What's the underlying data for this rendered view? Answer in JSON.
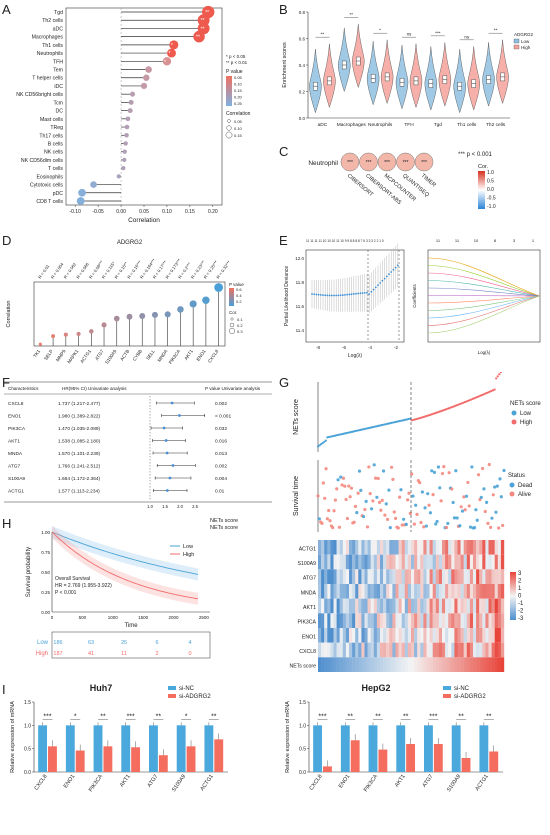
{
  "panels": {
    "A": "A",
    "B": "B",
    "C": "C",
    "D": "D",
    "E": "E",
    "F": "F",
    "G": "G",
    "H": "H",
    "I": "I"
  },
  "colors": {
    "low": "#4aa3d6",
    "high": "#f26b6b",
    "bar_nc": "#4aa8dc",
    "bar_si": "#f46d5e"
  },
  "panelA": {
    "xlabel": "Correlation",
    "xticks": [
      "-0.10",
      "-0.05",
      "0.00",
      "0.05",
      "0.10",
      "0.15",
      "0.20"
    ],
    "legend_sig": [
      "* p < 0.05",
      "** p < 0.01"
    ],
    "legend_pval_title": "P value",
    "legend_pval_ticks": [
      "0.05",
      "0.10",
      "0.15",
      "0.20",
      "0.25"
    ],
    "legend_corr_title": "Correlation",
    "legend_corr_ticks": [
      "0.05",
      "0.10",
      "0.15"
    ],
    "chart_data": {
      "type": "scatter",
      "categories": [
        "Tgd",
        "Th2 cells",
        "aDC",
        "Macrophages",
        "Th1 cells",
        "Neutrophils",
        "TFH",
        "Tem",
        "T helper cells",
        "iDC",
        "NK CD56bright cells",
        "Tcm",
        "DC",
        "Mast cells",
        "TReg",
        "Th17 cells",
        "B cells",
        "NK cells",
        "NK CD56dim cells",
        "T cells",
        "Eosinophils",
        "Cytotoxic cells",
        "pDC",
        "CD8 T cells"
      ],
      "values": [
        0.19,
        0.18,
        0.18,
        0.17,
        0.115,
        0.11,
        0.1,
        0.06,
        0.055,
        0.05,
        0.025,
        0.022,
        0.02,
        0.015,
        0.013,
        0.012,
        0.01,
        0.008,
        0.007,
        0.005,
        -0.005,
        -0.06,
        -0.085,
        -0.088
      ],
      "stars": [
        "**",
        "**",
        "**",
        "**",
        "*",
        "*",
        "*",
        "",
        "",
        "",
        "",
        "",
        "",
        "",
        "",
        "",
        "",
        "",
        "",
        "",
        "",
        "",
        "",
        ""
      ],
      "xlim": [
        -0.12,
        0.22
      ]
    }
  },
  "panelB": {
    "ylabel": "Enrichment scores",
    "legend_title": "ADGRG2",
    "legend": [
      "Low",
      "High"
    ],
    "yticks": [
      "0.0",
      "0.2",
      "0.4",
      "0.6",
      "0.8"
    ],
    "chart_data": {
      "type": "violin",
      "categories": [
        "aDC",
        "Macrophages",
        "Neutrophils",
        "TFH",
        "Tgd",
        "Th1 cells",
        "Th2 cells"
      ],
      "series": [
        {
          "name": "Low",
          "values": [
            0.24,
            0.4,
            0.3,
            0.27,
            0.26,
            0.24,
            0.29
          ]
        },
        {
          "name": "High",
          "values": [
            0.28,
            0.43,
            0.31,
            0.28,
            0.29,
            0.26,
            0.31
          ]
        }
      ],
      "significance": [
        "**",
        "**",
        "*",
        "ns",
        "***",
        "ns",
        "**"
      ],
      "ylim": [
        0,
        0.8
      ]
    }
  },
  "panelC": {
    "row_label": "Neutrophil",
    "pnote": "*** p < 0.001",
    "cor_title": "Cor.",
    "cor_ticks": [
      "1.0",
      "0.5",
      "0.0",
      "-0.5",
      "-1.0"
    ],
    "methods": [
      "CIBERSORT",
      "CIBERSORT-ABS",
      "MCPCOUNTER",
      "QUANTISEQ",
      "TIMER"
    ],
    "cells": [
      "***",
      "***",
      "***",
      "***",
      "***"
    ]
  },
  "panelD": {
    "title": "ADGRG2",
    "ylabel": "Correlation",
    "legend_pval_title": "P value",
    "legend_pval_ticks": [
      "0.6",
      "0.4",
      "0.2"
    ],
    "legend_cor_title": "Cor.",
    "legend_cor_ticks": [
      "0.1",
      "0.2",
      "0.3"
    ],
    "chart_data": {
      "type": "lollipop",
      "categories": [
        "TK1",
        "SELP",
        "MMP9",
        "MAPK1",
        "ACTG1",
        "ATG7",
        "S100A9",
        "ACTB",
        "CYBB",
        "SELL",
        "MNDA",
        "PIK3CA",
        "AKT1",
        "ENO1",
        "CXCL8"
      ],
      "values": [
        0.01,
        0.054,
        0.062,
        0.066,
        0.08,
        0.115,
        0.15,
        0.16,
        0.164,
        0.17,
        0.173,
        0.2,
        0.23,
        0.25,
        0.32
      ],
      "labels": [
        "R = 0.01",
        "R = 0.054",
        "R = 0.062",
        "R = 0.066",
        "R = 0.08***",
        "R = 0.115*",
        "R = 0.15**",
        "R = 0.16***",
        "R = 0.164***",
        "R = 0.17***",
        "R = 0.173***",
        "R = 0.2***",
        "R = 0.23***",
        "R = 0.25***",
        "R = 0.32***"
      ],
      "ylim": [
        0,
        0.35
      ]
    }
  },
  "panelE": {
    "left_ylabel": "Partial Likelihood Deviance",
    "left_xlabel": "Log(λ)",
    "left_top": "11 11 11 11 10 10 10 11 10 9 9 8 8 8 8 7 6 3 3 3 2 2 1 0",
    "left_yticks": [
      "12.0",
      "11.8",
      "11.6",
      "11.4"
    ],
    "left_xticks": [
      "-8",
      "-6",
      "-4",
      "-2"
    ],
    "right_ylabel": "Coefficients",
    "right_xlabel": "Log(λ)",
    "right_top": [
      "11",
      "11",
      "10",
      "8",
      "3",
      "1"
    ]
  },
  "panelF": {
    "headers": [
      "Characteristics",
      "HR(95% CI) Univariate analysis",
      "P value Univariate analysis"
    ],
    "rows": [
      {
        "name": "CXCL8",
        "hr": "1.737 (1.217-2.477)",
        "p": "0.002"
      },
      {
        "name": "ENO1",
        "hr": "1.980 (1.389-2.822)",
        "p": "< 0.001"
      },
      {
        "name": "PIK3CA",
        "hr": "1.470 (1.035-2.089)",
        "p": "0.032"
      },
      {
        "name": "AKT1",
        "hr": "1.538 (1.085-2.180)",
        "p": "0.016"
      },
      {
        "name": "MNDA",
        "hr": "1.570 (1.101-2.239)",
        "p": "0.013"
      },
      {
        "name": "ATG7",
        "hr": "1.766 (1.241-2.512)",
        "p": "0.002"
      },
      {
        "name": "S100A9",
        "hr": "1.664 (1.172-2.364)",
        "p": "0.004"
      },
      {
        "name": "ACTG1",
        "hr": "1.577 (1.113-2.234)",
        "p": "0.01"
      }
    ],
    "xticks": [
      "1.0",
      "1.5",
      "2.0",
      "2.5"
    ]
  },
  "panelG": {
    "score_ylabel": "NETs score",
    "legend_title": "NETs score",
    "legend": [
      "Low",
      "High"
    ],
    "surv_ylabel": "Survival time",
    "status_title": "Status",
    "status": [
      "Dead",
      "Alive"
    ],
    "genes": [
      "ACTG1",
      "S100A9",
      "ATG7",
      "MNDA",
      "AKT1",
      "PIK3CA",
      "ENO1",
      "CXCL8",
      "NETs score"
    ],
    "heat_ticks": [
      "3",
      "2",
      "1",
      "0",
      "-1",
      "-2",
      "-3"
    ]
  },
  "panelH": {
    "legend_title": "NETs score",
    "legend": [
      "Low",
      "High"
    ],
    "ylabel": "Survival probability",
    "xlabel": "Time",
    "os": "Overall Survival",
    "hr": "HR = 2.769 (1.955-3.922)",
    "p": "P < 0.001",
    "yticks": [
      "1.00",
      "0.75",
      "0.50",
      "0.25",
      "0.00"
    ],
    "xticks": [
      "0",
      "500",
      "1000",
      "1500",
      "2000",
      "2500"
    ],
    "risk": [
      {
        "name": "Low",
        "values": [
          "186",
          "63",
          "25",
          "6",
          "4"
        ]
      },
      {
        "name": "High",
        "values": [
          "187",
          "41",
          "11",
          "2",
          "0"
        ]
      }
    ]
  },
  "panelI": {
    "charts": [
      {
        "title": "Huh7",
        "ylabel": "Relative expression of mRNA",
        "legend": [
          "si-NC",
          "si-ADGRG2"
        ],
        "categories": [
          "CXCL8",
          "ENO1",
          "PIK3CA",
          "AKT1",
          "ATG7",
          "S100A9",
          "ACTG1"
        ],
        "values_nc": [
          1,
          1,
          1,
          1,
          1,
          1,
          1
        ],
        "values_si": [
          0.55,
          0.46,
          0.55,
          0.53,
          0.36,
          0.55,
          0.7
        ],
        "sig": [
          "***",
          "*",
          "**",
          "***",
          "**",
          "*",
          "**"
        ]
      },
      {
        "title": "HepG2",
        "ylabel": "Relative expression of mRNA",
        "legend": [
          "si-NC",
          "si-ADGRG2"
        ],
        "categories": [
          "CXCL8",
          "ENO1",
          "PIK3CA",
          "AKT1",
          "ATG7",
          "S100A9",
          "ACTG1"
        ],
        "values_nc": [
          1,
          1,
          1,
          1,
          1,
          1,
          1
        ],
        "values_si": [
          0.12,
          0.68,
          0.48,
          0.6,
          0.6,
          0.3,
          0.44
        ],
        "sig": [
          "***",
          "**",
          "**",
          "**",
          "***",
          "**",
          "**"
        ]
      }
    ],
    "yticks": [
      "0.0",
      "0.5",
      "1.0",
      "1.5"
    ]
  }
}
